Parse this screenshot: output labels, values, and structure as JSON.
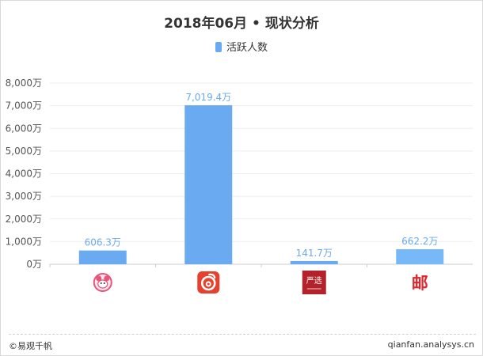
{
  "chart_data": {
    "type": "bar",
    "title": "2018年06月 • 现状分析",
    "categories": [
      "app-icon-1",
      "netease-cloud-music",
      "yanxuan",
      "post-app"
    ],
    "series": [
      {
        "name": "活跃人数",
        "values": [
          606.3,
          7019.4,
          141.7,
          662.2
        ],
        "value_labels": [
          "606.3万",
          "7,019.4万",
          "141.7万",
          "662.2万"
        ],
        "colors": [
          "#6aaaf0",
          "#6aaaf0",
          "#6aaaf0",
          "#76b8f8"
        ]
      }
    ],
    "ylim": [
      0,
      8000
    ],
    "yticks": [
      0,
      1000,
      2000,
      3000,
      4000,
      5000,
      6000,
      7000,
      8000
    ],
    "ytick_labels": [
      "0万",
      "1,000万",
      "2,000万",
      "3,000万",
      "4,000万",
      "5,000万",
      "6,000万",
      "7,000万",
      "8,000万"
    ],
    "grid": true,
    "legend": "top-center",
    "colors": {
      "bar": "#6aaaf0",
      "label": "#6aaaf0",
      "axis": "#cccccc",
      "grid": "#eeeeee",
      "tick_text": "#555555"
    }
  },
  "footer": {
    "left": "©易观千帆",
    "right": "qianfan.analysys.cn"
  },
  "icons": {
    "yanxuan_text": "严选",
    "post_text": "邮"
  }
}
